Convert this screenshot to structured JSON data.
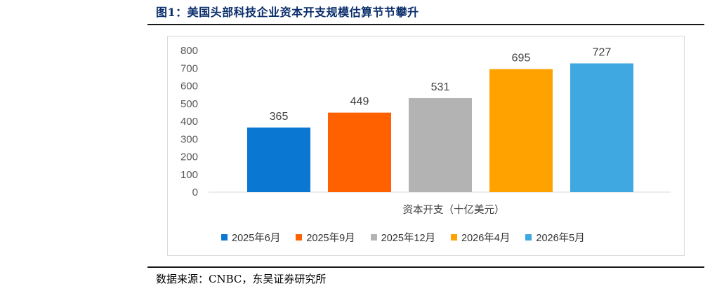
{
  "figure_title": "图1：美国头部科技企业资本开支规模估算节节攀升",
  "source": "数据来源：CNBC，东吴证券研究所",
  "chart_data": {
    "type": "bar",
    "categories": [
      "资本开支（十亿美元）"
    ],
    "xlabel": "资本开支（十亿美元）",
    "ylim": [
      0,
      800
    ],
    "yticks": [
      0,
      100,
      200,
      300,
      400,
      500,
      600,
      700,
      800
    ],
    "grid": false,
    "legend_position": "bottom",
    "series": [
      {
        "name": "2025年6月",
        "values": [
          365
        ],
        "color": "#0a77d3"
      },
      {
        "name": "2025年9月",
        "values": [
          449
        ],
        "color": "#ff6000"
      },
      {
        "name": "2025年12月",
        "values": [
          531
        ],
        "color": "#b3b3b3"
      },
      {
        "name": "2026年4月",
        "values": [
          695
        ],
        "color": "#ffa200"
      },
      {
        "name": "2026年5月",
        "values": [
          727
        ],
        "color": "#3fa8e0"
      }
    ]
  }
}
